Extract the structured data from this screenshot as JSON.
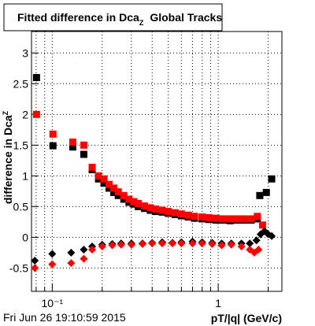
{
  "chart_data": {
    "type": "scatter",
    "title": [
      "Fitted difference in Dca",
      "Z",
      "Global Tracks"
    ],
    "ylabel": [
      "difference in Dca",
      "Z"
    ],
    "xlabel": "pT/|q| (GeV/c)",
    "timestamp": "Fri Jun 26 19:10:59 2015",
    "xlog": true,
    "grid": true,
    "xlim": [
      0.075,
      2.42
    ],
    "ylim": [
      -0.88,
      3.35
    ],
    "xticks": [
      {
        "value": 0.1,
        "label": "10⁻¹"
      },
      1
    ],
    "xminor": [
      0.08,
      0.09,
      0.2,
      0.3,
      0.4,
      0.5,
      0.6,
      0.7,
      0.8,
      0.9,
      2
    ],
    "yticks": [
      -0.5,
      0,
      0.5,
      1,
      1.5,
      2,
      2.5,
      3
    ],
    "series": [
      {
        "color": "#000000",
        "marker": "square",
        "x": [
          0.0804,
          0.101,
          0.133,
          0.155,
          0.174,
          0.19,
          0.205,
          0.22,
          0.235,
          0.25,
          0.27,
          0.29,
          0.31,
          0.33,
          0.36,
          0.39,
          0.42,
          0.46,
          0.5,
          0.55,
          0.6,
          0.66,
          0.72,
          0.8,
          0.88,
          0.97,
          1.07,
          1.18,
          1.3,
          1.43,
          1.58,
          1.72,
          1.78,
          1.95,
          2.1
        ],
        "values": [
          2.6,
          1.49,
          1.47,
          1.35,
          1.1,
          0.95,
          0.88,
          0.8,
          0.73,
          0.68,
          0.62,
          0.57,
          0.54,
          0.5,
          0.47,
          0.44,
          0.42,
          0.41,
          0.39,
          0.37,
          0.35,
          0.33,
          0.31,
          0.3,
          0.29,
          0.28,
          0.28,
          0.27,
          0.28,
          0.28,
          0.28,
          0.3,
          0.68,
          0.73,
          0.95
        ]
      },
      {
        "color": "#ff0000",
        "marker": "square",
        "x": [
          0.0804,
          0.101,
          0.133,
          0.155,
          0.174,
          0.19,
          0.205,
          0.22,
          0.235,
          0.25,
          0.27,
          0.29,
          0.31,
          0.33,
          0.36,
          0.39,
          0.42,
          0.46,
          0.5,
          0.55,
          0.6,
          0.66,
          0.72,
          0.8,
          0.88,
          0.97,
          1.07,
          1.18,
          1.3,
          1.43,
          1.58,
          1.72,
          1.85
        ],
        "values": [
          2.0,
          1.68,
          1.55,
          1.5,
          1.14,
          1.0,
          0.95,
          0.86,
          0.8,
          0.74,
          0.68,
          0.62,
          0.58,
          0.55,
          0.51,
          0.48,
          0.46,
          0.44,
          0.42,
          0.4,
          0.38,
          0.36,
          0.34,
          0.33,
          0.32,
          0.31,
          0.3,
          0.3,
          0.3,
          0.3,
          0.3,
          0.34,
          0.2
        ]
      },
      {
        "color": "#000000",
        "marker": "diamond",
        "x": [
          0.0785,
          0.1,
          0.13,
          0.155,
          0.174,
          0.2,
          0.23,
          0.26,
          0.3,
          0.35,
          0.4,
          0.46,
          0.53,
          0.6,
          0.7,
          0.8,
          0.92,
          1.05,
          1.2,
          1.38,
          1.55,
          1.7,
          1.8,
          1.9,
          2.0,
          2.1
        ],
        "values": [
          -0.38,
          -0.27,
          -0.25,
          -0.2,
          -0.15,
          -0.12,
          -0.11,
          -0.1,
          -0.1,
          -0.1,
          -0.09,
          -0.08,
          -0.09,
          -0.08,
          -0.07,
          -0.08,
          -0.09,
          -0.1,
          -0.1,
          -0.1,
          -0.1,
          -0.05,
          0.05,
          0.1,
          0.05,
          0.02
        ]
      },
      {
        "color": "#ff0000",
        "marker": "diamond",
        "x": [
          0.0785,
          0.1,
          0.13,
          0.155,
          0.174,
          0.2,
          0.23,
          0.26,
          0.3,
          0.35,
          0.4,
          0.46,
          0.53,
          0.6,
          0.7,
          0.8,
          0.92,
          1.05,
          1.2,
          1.38,
          1.55,
          1.65,
          1.75
        ],
        "values": [
          -0.5,
          -0.44,
          -0.42,
          -0.35,
          -0.2,
          -0.15,
          -0.13,
          -0.12,
          -0.12,
          -0.11,
          -0.1,
          -0.1,
          -0.1,
          -0.1,
          -0.1,
          -0.1,
          -0.11,
          -0.13,
          -0.12,
          -0.15,
          -0.2,
          -0.25,
          -0.2
        ]
      }
    ]
  }
}
